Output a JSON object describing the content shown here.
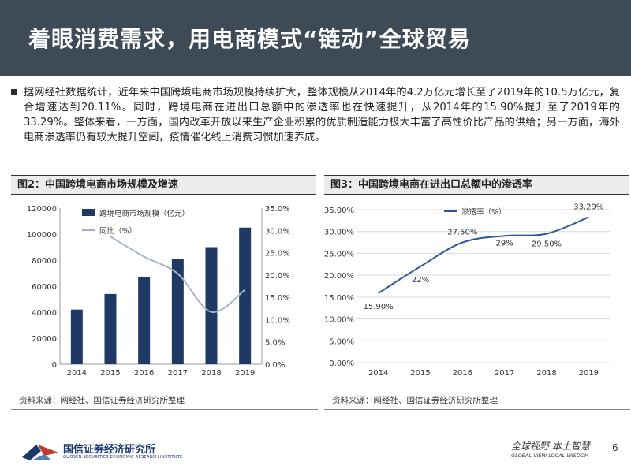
{
  "header": {
    "title": "着眼消费需求，用电商模式“链动”全球贸易"
  },
  "summary": {
    "text": "据网经社数据统计，近年来中国跨境电商市场规模持续扩大，整体规模从2014年的4.2万亿元增长至了2019年的10.5万亿元，复合增速达到20.11%。同时，跨境电商在进出口总额中的渗透率也在快速提升，从2014年的15.90%提升至了2019年的33.29%。整体来看，一方面，国内改革开放以来生产企业积累的优质制造能力极大丰富了高性价比产品的供给；另一方面，海外电商渗透率仍有较大提升空间，疫情催化线上消费习惯加速养成。"
  },
  "figures": [
    {
      "title": "图2：中国跨境电商市场规模及增速",
      "source": "资料来源：网经社、国信证券经济研究所整理"
    },
    {
      "title": "图3：中国跨境电商在进出口总额中的渗透率",
      "source": "资料来源：网经社、国信证券经济研究所整理"
    }
  ],
  "chart_data": [
    {
      "type": "bar",
      "title": "中国跨境电商市场规模及增速",
      "categories": [
        "2014",
        "2015",
        "2016",
        "2017",
        "2018",
        "2019"
      ],
      "series": [
        {
          "name": "跨境电商市场规模（亿元）",
          "type": "bar",
          "axis": "left",
          "values": [
            42000,
            54000,
            67000,
            80600,
            90000,
            105000
          ]
        },
        {
          "name": "同比（%）",
          "type": "line",
          "axis": "right",
          "values": [
            null,
            28.6,
            24.1,
            20.3,
            11.7,
            16.7
          ]
        }
      ],
      "ylim": [
        0,
        120000
      ],
      "yticks": [
        "0",
        "20000",
        "40000",
        "60000",
        "80000",
        "100000",
        "120000"
      ],
      "y2lim": [
        0,
        35
      ],
      "y2ticks": [
        "0.0%",
        "5.0%",
        "10.0%",
        "15.0%",
        "20.0%",
        "25.0%",
        "30.0%",
        "35.0%"
      ],
      "legend": "top-left",
      "bar_color": "#1f3864",
      "line_color": "#a6b4c8"
    },
    {
      "type": "line",
      "title": "中国跨境电商在进出口总额中的渗透率",
      "categories": [
        "2014",
        "2015",
        "2016",
        "2017",
        "2018",
        "2019"
      ],
      "series": [
        {
          "name": "渗透率（%）",
          "values": [
            15.9,
            22,
            27.5,
            29,
            29.5,
            33.29
          ]
        }
      ],
      "data_labels": [
        "15.90%",
        "22%",
        "27.50%",
        "29%",
        "29.50%",
        "33.29%"
      ],
      "ylim": [
        0,
        35
      ],
      "yticks": [
        "0.00%",
        "5.00%",
        "10.00%",
        "15.00%",
        "20.00%",
        "25.00%",
        "30.00%",
        "35.00%"
      ],
      "grid": true,
      "legend": "top-left",
      "line_color": "#2e5597"
    }
  ],
  "footer": {
    "logo_cn": "国信证券经济研究所",
    "logo_en": "GUOSEN SECURITIES ECONOMIC RESEARCH INSTITUTE",
    "slogan_cn": "全球视野 本土智慧",
    "slogan_en": "GLOBAL VIEW   LOCAL WISDOM",
    "page_number": "6"
  }
}
